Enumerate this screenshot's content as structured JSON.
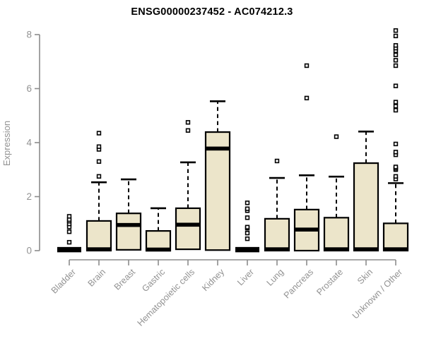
{
  "chart_data": {
    "type": "boxplot",
    "title": "ENSG00000237452 - AC074212.3",
    "ylabel": "Expression",
    "ylim": [
      0,
      8
    ],
    "yticks": [
      0,
      2,
      4,
      6,
      8
    ],
    "grid": false,
    "legend": false,
    "categories": [
      "Bladder",
      "Brain",
      "Breast",
      "Gastric",
      "Hematopoietic cells",
      "Kidney",
      "Liver",
      "Lung",
      "Pancreas",
      "Prostate",
      "Skin",
      "Unknown / Other"
    ],
    "series": [
      {
        "category": "Bladder",
        "collapsed": true,
        "q1": 0,
        "median": 0.03,
        "q3": 0.07,
        "whisker_high": null,
        "outliers": [
          0.31,
          0.7,
          0.88,
          0.99,
          1.09,
          1.15,
          1.27
        ]
      },
      {
        "category": "Brain",
        "collapsed": false,
        "q1": 0,
        "median": 0.05,
        "q3": 1.1,
        "whisker_high": 2.53,
        "outliers": [
          2.75,
          3.3,
          3.75,
          3.85,
          4.35
        ]
      },
      {
        "category": "Breast",
        "collapsed": false,
        "q1": 0.03,
        "median": 0.95,
        "q3": 1.38,
        "whisker_high": 2.64,
        "outliers": []
      },
      {
        "category": "Gastric",
        "collapsed": false,
        "q1": 0,
        "median": 0.04,
        "q3": 0.73,
        "whisker_high": 1.57,
        "outliers": []
      },
      {
        "category": "Hematopoietic cells",
        "collapsed": false,
        "q1": 0.05,
        "median": 0.96,
        "q3": 1.57,
        "whisker_high": 3.27,
        "outliers": [
          4.45,
          4.75
        ]
      },
      {
        "category": "Kidney",
        "collapsed": false,
        "q1": 0.02,
        "median": 3.78,
        "q3": 4.39,
        "whisker_high": 5.53,
        "outliers": []
      },
      {
        "category": "Liver",
        "collapsed": true,
        "q1": 0,
        "median": 0.03,
        "q3": 0.07,
        "whisker_high": null,
        "outliers": [
          0.44,
          0.65,
          0.83,
          0.87,
          1.22,
          1.48,
          1.55,
          1.77
        ]
      },
      {
        "category": "Lung",
        "collapsed": false,
        "q1": 0,
        "median": 0.05,
        "q3": 1.18,
        "whisker_high": 2.69,
        "outliers": [
          3.32
        ]
      },
      {
        "category": "Pancreas",
        "collapsed": false,
        "q1": 0,
        "median": 0.78,
        "q3": 1.52,
        "whisker_high": 2.79,
        "outliers": [
          5.65,
          6.85
        ]
      },
      {
        "category": "Prostate",
        "collapsed": false,
        "q1": 0,
        "median": 0.05,
        "q3": 1.22,
        "whisker_high": 2.74,
        "outliers": [
          4.22
        ]
      },
      {
        "category": "Skin",
        "collapsed": false,
        "q1": 0,
        "median": 0.05,
        "q3": 3.24,
        "whisker_high": 4.41,
        "outliers": []
      },
      {
        "category": "Unknown / Other",
        "collapsed": false,
        "q1": 0,
        "median": 0.05,
        "q3": 1.01,
        "whisker_high": 2.5,
        "outliers": [
          2.65,
          2.75,
          3.0,
          3.05,
          3.1,
          3.55,
          3.65,
          3.95,
          5.2,
          5.35,
          5.5,
          6.1,
          6.85,
          7.05,
          7.25,
          7.4,
          7.5,
          7.6,
          7.95,
          8.15
        ]
      }
    ],
    "colors": {
      "box_fill": "#ece5ca",
      "box_stroke": "#000000",
      "median": "#000000",
      "outlier_stroke": "#000000",
      "axis_line": "#8c8c8c",
      "tick_text": "#929292",
      "title_text": "#000000",
      "background": "#ffffff"
    }
  }
}
